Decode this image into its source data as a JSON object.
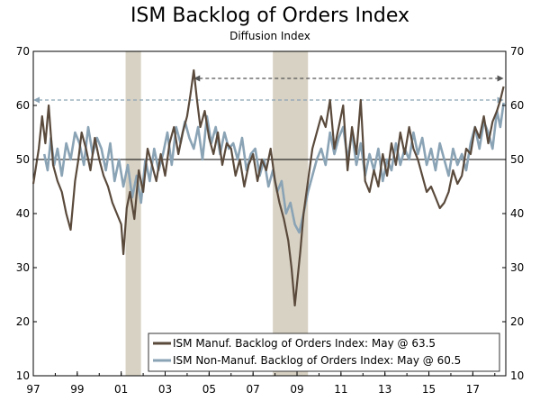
{
  "chart_data": {
    "type": "line",
    "title": "ISM Backlog of Orders Index",
    "subtitle": "Diffusion Index",
    "xlabel": "",
    "ylabel": "",
    "ylim": [
      10,
      70
    ],
    "xlim": [
      1997.0,
      2018.5
    ],
    "y_ticks": [
      10,
      20,
      30,
      40,
      50,
      60,
      70
    ],
    "y_tick_labels": [
      "10",
      "20",
      "30",
      "40",
      "50",
      "60",
      "70"
    ],
    "x_ticks": [
      1997,
      1999,
      2001,
      2003,
      2005,
      2007,
      2009,
      2011,
      2013,
      2015,
      2017
    ],
    "x_tick_labels": [
      "97",
      "99",
      "01",
      "03",
      "05",
      "07",
      "09",
      "11",
      "13",
      "15",
      "17"
    ],
    "reference_line": 50,
    "recessions": [
      [
        2001.2,
        2001.9
      ],
      [
        2007.9,
        2009.5
      ]
    ],
    "annotations": [
      {
        "type": "dashed-arrow",
        "from": 2004.3,
        "to": 2018.4,
        "y": 65,
        "series": "ISM Manuf."
      },
      {
        "type": "dashed-arrow",
        "from": 1997.0,
        "to": 2018.4,
        "y": 61,
        "series": "ISM Non-Manuf."
      }
    ],
    "legend_position": "bottom-right",
    "series": [
      {
        "name": "ISM Manuf. Backlog of Orders Index: May @ 63.5",
        "color": "#5a4a3c",
        "x": [
          1997.0,
          1997.25,
          1997.4,
          1997.55,
          1997.7,
          1997.9,
          1998.1,
          1998.3,
          1998.5,
          1998.7,
          1998.9,
          1999.05,
          1999.2,
          1999.4,
          1999.6,
          1999.8,
          2000.0,
          2000.2,
          2000.4,
          2000.6,
          2000.8,
          2001.0,
          2001.1,
          2001.25,
          2001.4,
          2001.6,
          2001.8,
          2002.0,
          2002.2,
          2002.4,
          2002.6,
          2002.8,
          2003.0,
          2003.2,
          2003.4,
          2003.6,
          2003.8,
          2004.0,
          2004.15,
          2004.3,
          2004.45,
          2004.6,
          2004.8,
          2005.0,
          2005.2,
          2005.4,
          2005.6,
          2005.8,
          2006.0,
          2006.2,
          2006.4,
          2006.6,
          2006.8,
          2007.0,
          2007.2,
          2007.4,
          2007.6,
          2007.8,
          2008.0,
          2008.2,
          2008.4,
          2008.6,
          2008.75,
          2008.9,
          2009.0,
          2009.15,
          2009.3,
          2009.5,
          2009.7,
          2009.9,
          2010.1,
          2010.3,
          2010.5,
          2010.7,
          2010.9,
          2011.1,
          2011.3,
          2011.5,
          2011.7,
          2011.9,
          2012.1,
          2012.3,
          2012.5,
          2012.7,
          2012.9,
          2013.1,
          2013.3,
          2013.5,
          2013.7,
          2013.9,
          2014.1,
          2014.3,
          2014.5,
          2014.7,
          2014.9,
          2015.1,
          2015.3,
          2015.5,
          2015.7,
          2015.9,
          2016.1,
          2016.3,
          2016.5,
          2016.7,
          2016.9,
          2017.1,
          2017.3,
          2017.5,
          2017.7,
          2017.9,
          2018.1,
          2018.25,
          2018.4
        ],
        "values": [
          45.5,
          52,
          58,
          53,
          60,
          49,
          46,
          44,
          40,
          37,
          46,
          50,
          55,
          52,
          48,
          54,
          50,
          47,
          45,
          42,
          40,
          38,
          32.5,
          41,
          44,
          39,
          48,
          44,
          52,
          49,
          46,
          51,
          47,
          53,
          56,
          51,
          55,
          58,
          62,
          66.5,
          61,
          56,
          59,
          54,
          51,
          55,
          49,
          53,
          52,
          47,
          50,
          45,
          49,
          51,
          46,
          50,
          48,
          52,
          46,
          42,
          39,
          35,
          30,
          23,
          27,
          33,
          40,
          46,
          52,
          55,
          58,
          56,
          61,
          52,
          56,
          60,
          48,
          56,
          51,
          61,
          46,
          44,
          48,
          45,
          51,
          47,
          53,
          49,
          55,
          51,
          56,
          52,
          50,
          47,
          44,
          45,
          43,
          41,
          42,
          44,
          48,
          45.5,
          47,
          52,
          51,
          56,
          54,
          58,
          53,
          57,
          59,
          61,
          63.5
        ]
      },
      {
        "name": "ISM Non-Manuf. Backlog of Orders Index: May @ 60.5",
        "color": "#8aa3b5",
        "x": [
          1997.5,
          1997.65,
          1997.8,
          1997.95,
          1998.1,
          1998.3,
          1998.5,
          1998.7,
          1998.9,
          1999.1,
          1999.3,
          1999.5,
          1999.7,
          1999.9,
          2000.1,
          2000.3,
          2000.5,
          2000.7,
          2000.9,
          2001.1,
          2001.3,
          2001.5,
          2001.7,
          2001.9,
          2002.1,
          2002.3,
          2002.5,
          2002.7,
          2002.9,
          2003.1,
          2003.3,
          2003.5,
          2003.7,
          2003.9,
          2004.1,
          2004.3,
          2004.5,
          2004.7,
          2004.9,
          2005.1,
          2005.3,
          2005.5,
          2005.7,
          2005.9,
          2006.1,
          2006.3,
          2006.5,
          2006.7,
          2006.9,
          2007.1,
          2007.3,
          2007.5,
          2007.7,
          2007.9,
          2008.1,
          2008.3,
          2008.5,
          2008.7,
          2008.9,
          2009.1,
          2009.3,
          2009.5,
          2009.7,
          2009.9,
          2010.1,
          2010.3,
          2010.5,
          2010.7,
          2010.9,
          2011.1,
          2011.3,
          2011.5,
          2011.7,
          2011.9,
          2012.1,
          2012.3,
          2012.5,
          2012.7,
          2012.9,
          2013.1,
          2013.3,
          2013.5,
          2013.7,
          2013.9,
          2014.1,
          2014.3,
          2014.5,
          2014.7,
          2014.9,
          2015.1,
          2015.3,
          2015.5,
          2015.7,
          2015.9,
          2016.1,
          2016.3,
          2016.5,
          2016.7,
          2016.9,
          2017.1,
          2017.3,
          2017.5,
          2017.7,
          2017.9,
          2018.1,
          2018.25,
          2018.4
        ],
        "values": [
          51,
          48,
          54,
          49,
          52,
          47,
          53,
          50,
          55,
          53,
          49,
          56,
          51,
          54,
          52,
          48,
          53,
          46,
          50,
          45,
          49,
          43,
          47,
          42,
          50,
          46,
          52,
          48,
          51,
          55,
          49,
          56,
          53,
          57,
          54,
          52,
          56,
          50,
          58,
          53,
          56,
          51,
          55,
          52,
          53,
          50,
          54,
          48,
          51,
          52,
          47,
          50,
          45,
          48,
          44,
          46,
          40,
          42,
          38,
          36.5,
          40,
          44,
          47,
          50,
          52,
          49,
          55,
          51,
          54,
          56,
          50,
          55,
          49,
          53,
          47,
          51,
          48,
          52,
          46,
          50,
          48,
          53,
          49,
          52,
          50,
          55,
          51,
          54,
          49,
          52,
          48,
          53,
          50,
          47,
          52,
          49,
          51,
          48,
          53,
          56,
          52,
          57,
          55,
          52,
          59,
          56,
          60.5
        ]
      }
    ]
  }
}
